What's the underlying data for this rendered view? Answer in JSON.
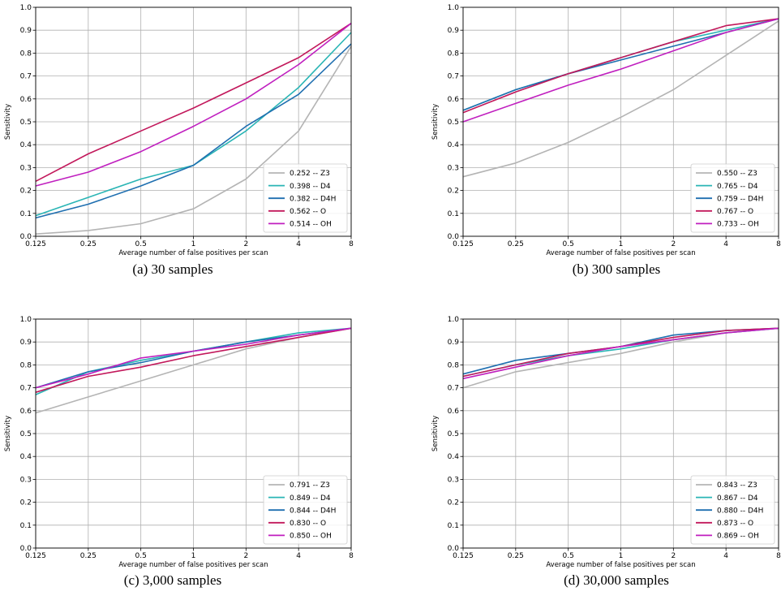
{
  "chart_data": [
    {
      "type": "line",
      "caption": "(a) 30 samples",
      "xlabel": "Average number of false positives per scan",
      "ylabel": "Sensitivity",
      "x_scale": "log2",
      "xlim": [
        0.125,
        8
      ],
      "ylim": [
        0.0,
        1.0
      ],
      "x_ticks": [
        "0.125",
        "0.25",
        "0.5",
        "1",
        "2",
        "4",
        "8"
      ],
      "y_ticks": [
        "0.0",
        "0.1",
        "0.2",
        "0.3",
        "0.4",
        "0.5",
        "0.6",
        "0.7",
        "0.8",
        "0.9",
        "1.0"
      ],
      "grid": true,
      "legend_position": "lower-right",
      "x": [
        0.125,
        0.25,
        0.5,
        1,
        2,
        4,
        8
      ],
      "series": [
        {
          "name": "0.252 -- Z3",
          "color": "#b4b4b4",
          "values": [
            0.01,
            0.025,
            0.055,
            0.12,
            0.25,
            0.46,
            0.83
          ]
        },
        {
          "name": "0.398 -- D4",
          "color": "#2ab5b5",
          "values": [
            0.09,
            0.17,
            0.25,
            0.31,
            0.46,
            0.65,
            0.89
          ]
        },
        {
          "name": "0.382 -- D4H",
          "color": "#1f6fb0",
          "values": [
            0.08,
            0.14,
            0.22,
            0.31,
            0.48,
            0.62,
            0.84
          ]
        },
        {
          "name": "0.562 -- O",
          "color": "#c2185b",
          "values": [
            0.24,
            0.36,
            0.46,
            0.56,
            0.67,
            0.78,
            0.93
          ]
        },
        {
          "name": "0.514 -- OH",
          "color": "#c01fbf",
          "values": [
            0.22,
            0.28,
            0.37,
            0.48,
            0.6,
            0.75,
            0.93
          ]
        }
      ]
    },
    {
      "type": "line",
      "caption": "(b) 300 samples",
      "xlabel": "Average number of false positives per scan",
      "ylabel": "Sensitivity",
      "x_scale": "log2",
      "xlim": [
        0.125,
        8
      ],
      "ylim": [
        0.0,
        1.0
      ],
      "x_ticks": [
        "0.125",
        "0.25",
        "0.5",
        "1",
        "2",
        "4",
        "8"
      ],
      "y_ticks": [
        "0.0",
        "0.1",
        "0.2",
        "0.3",
        "0.4",
        "0.5",
        "0.6",
        "0.7",
        "0.8",
        "0.9",
        "1.0"
      ],
      "grid": true,
      "legend_position": "lower-right",
      "x": [
        0.125,
        0.25,
        0.5,
        1,
        2,
        4,
        8
      ],
      "series": [
        {
          "name": "0.550 -- Z3",
          "color": "#b4b4b4",
          "values": [
            0.26,
            0.32,
            0.41,
            0.52,
            0.64,
            0.79,
            0.94
          ]
        },
        {
          "name": "0.765 -- D4",
          "color": "#2ab5b5",
          "values": [
            0.55,
            0.64,
            0.71,
            0.78,
            0.85,
            0.9,
            0.95
          ]
        },
        {
          "name": "0.759 -- D4H",
          "color": "#1f6fb0",
          "values": [
            0.55,
            0.64,
            0.71,
            0.77,
            0.83,
            0.89,
            0.95
          ]
        },
        {
          "name": "0.767 -- O",
          "color": "#c2185b",
          "values": [
            0.54,
            0.63,
            0.71,
            0.78,
            0.85,
            0.92,
            0.95
          ]
        },
        {
          "name": "0.733 -- OH",
          "color": "#c01fbf",
          "values": [
            0.5,
            0.58,
            0.66,
            0.73,
            0.81,
            0.89,
            0.95
          ]
        }
      ]
    },
    {
      "type": "line",
      "caption": "(c) 3,000 samples",
      "xlabel": "Average number of false positives per scan",
      "ylabel": "Sensitivity",
      "x_scale": "log2",
      "xlim": [
        0.125,
        8
      ],
      "ylim": [
        0.0,
        1.0
      ],
      "x_ticks": [
        "0.125",
        "0.25",
        "0.5",
        "1",
        "2",
        "4",
        "8"
      ],
      "y_ticks": [
        "0.0",
        "0.1",
        "0.2",
        "0.3",
        "0.4",
        "0.5",
        "0.6",
        "0.7",
        "0.8",
        "0.9",
        "1.0"
      ],
      "grid": true,
      "legend_position": "lower-right",
      "x": [
        0.125,
        0.25,
        0.5,
        1,
        2,
        4,
        8
      ],
      "series": [
        {
          "name": "0.791 -- Z3",
          "color": "#b4b4b4",
          "values": [
            0.59,
            0.66,
            0.73,
            0.8,
            0.87,
            0.92,
            0.96
          ]
        },
        {
          "name": "0.849 -- D4",
          "color": "#2ab5b5",
          "values": [
            0.67,
            0.77,
            0.82,
            0.86,
            0.9,
            0.94,
            0.96
          ]
        },
        {
          "name": "0.844 -- D4H",
          "color": "#1f6fb0",
          "values": [
            0.7,
            0.77,
            0.81,
            0.86,
            0.9,
            0.93,
            0.96
          ]
        },
        {
          "name": "0.830 -- O",
          "color": "#c2185b",
          "values": [
            0.68,
            0.75,
            0.79,
            0.84,
            0.88,
            0.92,
            0.96
          ]
        },
        {
          "name": "0.850 -- OH",
          "color": "#c01fbf",
          "values": [
            0.7,
            0.76,
            0.83,
            0.86,
            0.89,
            0.93,
            0.96
          ]
        }
      ]
    },
    {
      "type": "line",
      "caption": "(d) 30,000 samples",
      "xlabel": "Average number of false positives per scan",
      "ylabel": "Sensitivity",
      "x_scale": "log2",
      "xlim": [
        0.125,
        8
      ],
      "ylim": [
        0.0,
        1.0
      ],
      "x_ticks": [
        "0.125",
        "0.25",
        "0.5",
        "1",
        "2",
        "4",
        "8"
      ],
      "y_ticks": [
        "0.0",
        "0.1",
        "0.2",
        "0.3",
        "0.4",
        "0.5",
        "0.6",
        "0.7",
        "0.8",
        "0.9",
        "1.0"
      ],
      "grid": true,
      "legend_position": "lower-right",
      "x": [
        0.125,
        0.25,
        0.5,
        1,
        2,
        4,
        8
      ],
      "series": [
        {
          "name": "0.843 -- Z3",
          "color": "#b4b4b4",
          "values": [
            0.7,
            0.77,
            0.81,
            0.85,
            0.9,
            0.94,
            0.96
          ]
        },
        {
          "name": "0.867 -- D4",
          "color": "#2ab5b5",
          "values": [
            0.75,
            0.8,
            0.84,
            0.87,
            0.91,
            0.94,
            0.96
          ]
        },
        {
          "name": "0.880 -- D4H",
          "color": "#1f6fb0",
          "values": [
            0.76,
            0.82,
            0.85,
            0.88,
            0.93,
            0.95,
            0.96
          ]
        },
        {
          "name": "0.873 -- O",
          "color": "#c2185b",
          "values": [
            0.75,
            0.8,
            0.85,
            0.88,
            0.92,
            0.95,
            0.96
          ]
        },
        {
          "name": "0.869 -- OH",
          "color": "#c01fbf",
          "values": [
            0.74,
            0.79,
            0.84,
            0.88,
            0.91,
            0.94,
            0.96
          ]
        }
      ]
    }
  ]
}
